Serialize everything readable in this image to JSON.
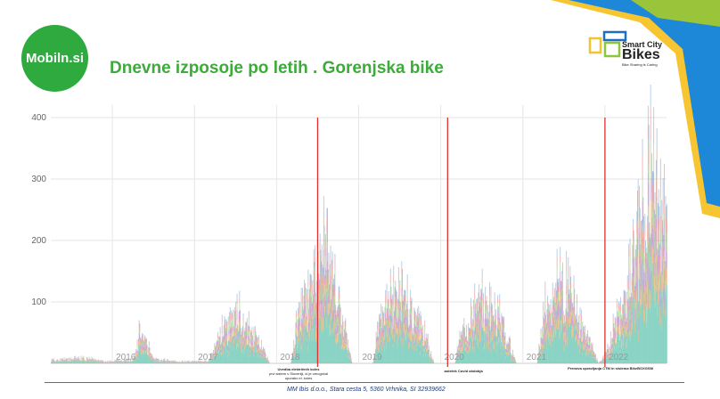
{
  "slide": {
    "logo_text": "Mobiln.si",
    "title": "Dnevne izposoje po letih . Gorenjska bike",
    "partner_logo": {
      "line1": "Smart City",
      "line2": "Bikes",
      "tagline": "Bike Sharing is Caring"
    },
    "footer": "MM Ibis d.o.o., Stara cesta 5, 5360 Vrhnika, SI 32939662",
    "colors": {
      "brand_green": "#2eaa3f",
      "title_green": "#3daa3a",
      "marker_red": "#e03030",
      "footer_blue": "#3a6fd0"
    }
  },
  "chart_data": {
    "type": "area",
    "stacked": true,
    "title": "",
    "xlabel": "",
    "ylabel": "",
    "ylim": [
      0,
      420
    ],
    "yticks": [
      100,
      200,
      300,
      400
    ],
    "xticks": [
      "2016",
      "2017",
      "2018",
      "2019",
      "2020",
      "2021",
      "2022"
    ],
    "xlim": [
      "2015-04",
      "2022-10"
    ],
    "grid": true,
    "legend": "none",
    "series_colors": [
      "#7fcfc0",
      "#e0a050",
      "#b070c0",
      "#90c070",
      "#e07070",
      "#70a0d0"
    ],
    "daily_peak_envelope": [
      {
        "date": "2015-05",
        "value": 8
      },
      {
        "date": "2015-09",
        "value": 12
      },
      {
        "date": "2015-12",
        "value": 4
      },
      {
        "date": "2016-04",
        "value": 10
      },
      {
        "date": "2016-05",
        "value": 70
      },
      {
        "date": "2016-07",
        "value": 10
      },
      {
        "date": "2016-11",
        "value": 4
      },
      {
        "date": "2017-03",
        "value": 5
      },
      {
        "date": "2017-05",
        "value": 70
      },
      {
        "date": "2017-07",
        "value": 110
      },
      {
        "date": "2017-10",
        "value": 55
      },
      {
        "date": "2017-12",
        "value": 0
      },
      {
        "date": "2018-03",
        "value": 0
      },
      {
        "date": "2018-04",
        "value": 100
      },
      {
        "date": "2018-06",
        "value": 170
      },
      {
        "date": "2018-08",
        "value": 265
      },
      {
        "date": "2018-10",
        "value": 140
      },
      {
        "date": "2018-12",
        "value": 0
      },
      {
        "date": "2019-03",
        "value": 0
      },
      {
        "date": "2019-04",
        "value": 110
      },
      {
        "date": "2019-07",
        "value": 165
      },
      {
        "date": "2019-10",
        "value": 90
      },
      {
        "date": "2019-12",
        "value": 0
      },
      {
        "date": "2020-03",
        "value": 0
      },
      {
        "date": "2020-04",
        "value": 70
      },
      {
        "date": "2020-07",
        "value": 140
      },
      {
        "date": "2020-10",
        "value": 90
      },
      {
        "date": "2020-12",
        "value": 0
      },
      {
        "date": "2021-03",
        "value": 0
      },
      {
        "date": "2021-04",
        "value": 110
      },
      {
        "date": "2021-07",
        "value": 185
      },
      {
        "date": "2021-10",
        "value": 70
      },
      {
        "date": "2021-12",
        "value": 0
      },
      {
        "date": "2022-01",
        "value": 20
      },
      {
        "date": "2022-04",
        "value": 160
      },
      {
        "date": "2022-06",
        "value": 310
      },
      {
        "date": "2022-08",
        "value": 410
      },
      {
        "date": "2022-10",
        "value": 330
      }
    ],
    "markers": [
      {
        "date": "2018-07",
        "label": "Uvedba električnih koles",
        "sublabel": "prvi sistem v Sloveniji, ki je omogočal uporabo el. koles"
      },
      {
        "date": "2020-02",
        "label": "začetek Covid obdobja",
        "sublabel": ""
      },
      {
        "date": "2022-01",
        "label": "Prenova upravljanja CTM in sistema BikeBOXGSM",
        "sublabel": ""
      }
    ]
  }
}
